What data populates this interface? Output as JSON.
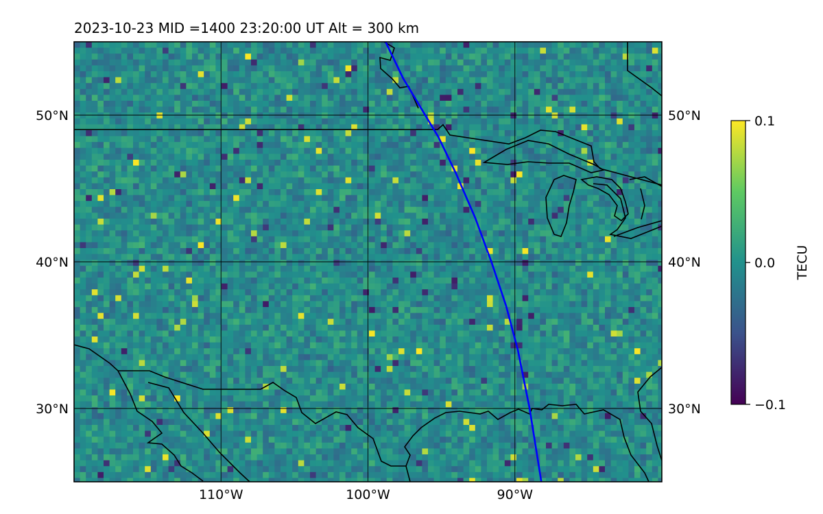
{
  "title": "2023-10-23  MID =1400    23:20:00  UT  Alt = 300 km",
  "map": {
    "lon_range": [
      -120,
      -80
    ],
    "lat_range": [
      25,
      55
    ],
    "gridlines": true,
    "lon_ticks": [
      {
        "value": -110,
        "label": "110°W"
      },
      {
        "value": -100,
        "label": "100°W"
      },
      {
        "value": -90,
        "label": "90°W"
      }
    ],
    "lat_ticks": [
      {
        "value": 50,
        "label": "50°N"
      },
      {
        "value": 40,
        "label": "40°N"
      },
      {
        "value": 30,
        "label": "30°N"
      }
    ],
    "field": "differential TEC anomaly (noisy, near zero)",
    "track": {
      "color": "#0000ff",
      "points": [
        [
          -98.8,
          55.0
        ],
        [
          -97.6,
          52.5
        ],
        [
          -95.2,
          48.5
        ],
        [
          -94.0,
          46.0
        ],
        [
          -92.7,
          43.0
        ],
        [
          -91.6,
          40.0
        ],
        [
          -90.6,
          37.0
        ],
        [
          -89.8,
          34.0
        ],
        [
          -89.0,
          30.0
        ],
        [
          -88.2,
          25.0
        ]
      ]
    }
  },
  "colorbar": {
    "label": "TECU",
    "min": -0.1,
    "max": 0.1,
    "ticks": [
      {
        "value": 0.1,
        "label": "0.1"
      },
      {
        "value": 0.0,
        "label": "0.0"
      },
      {
        "value": -0.1,
        "label": "−0.1"
      }
    ],
    "colormap": [
      "#440154",
      "#3b528b",
      "#21918c",
      "#5ec962",
      "#fde725"
    ]
  }
}
